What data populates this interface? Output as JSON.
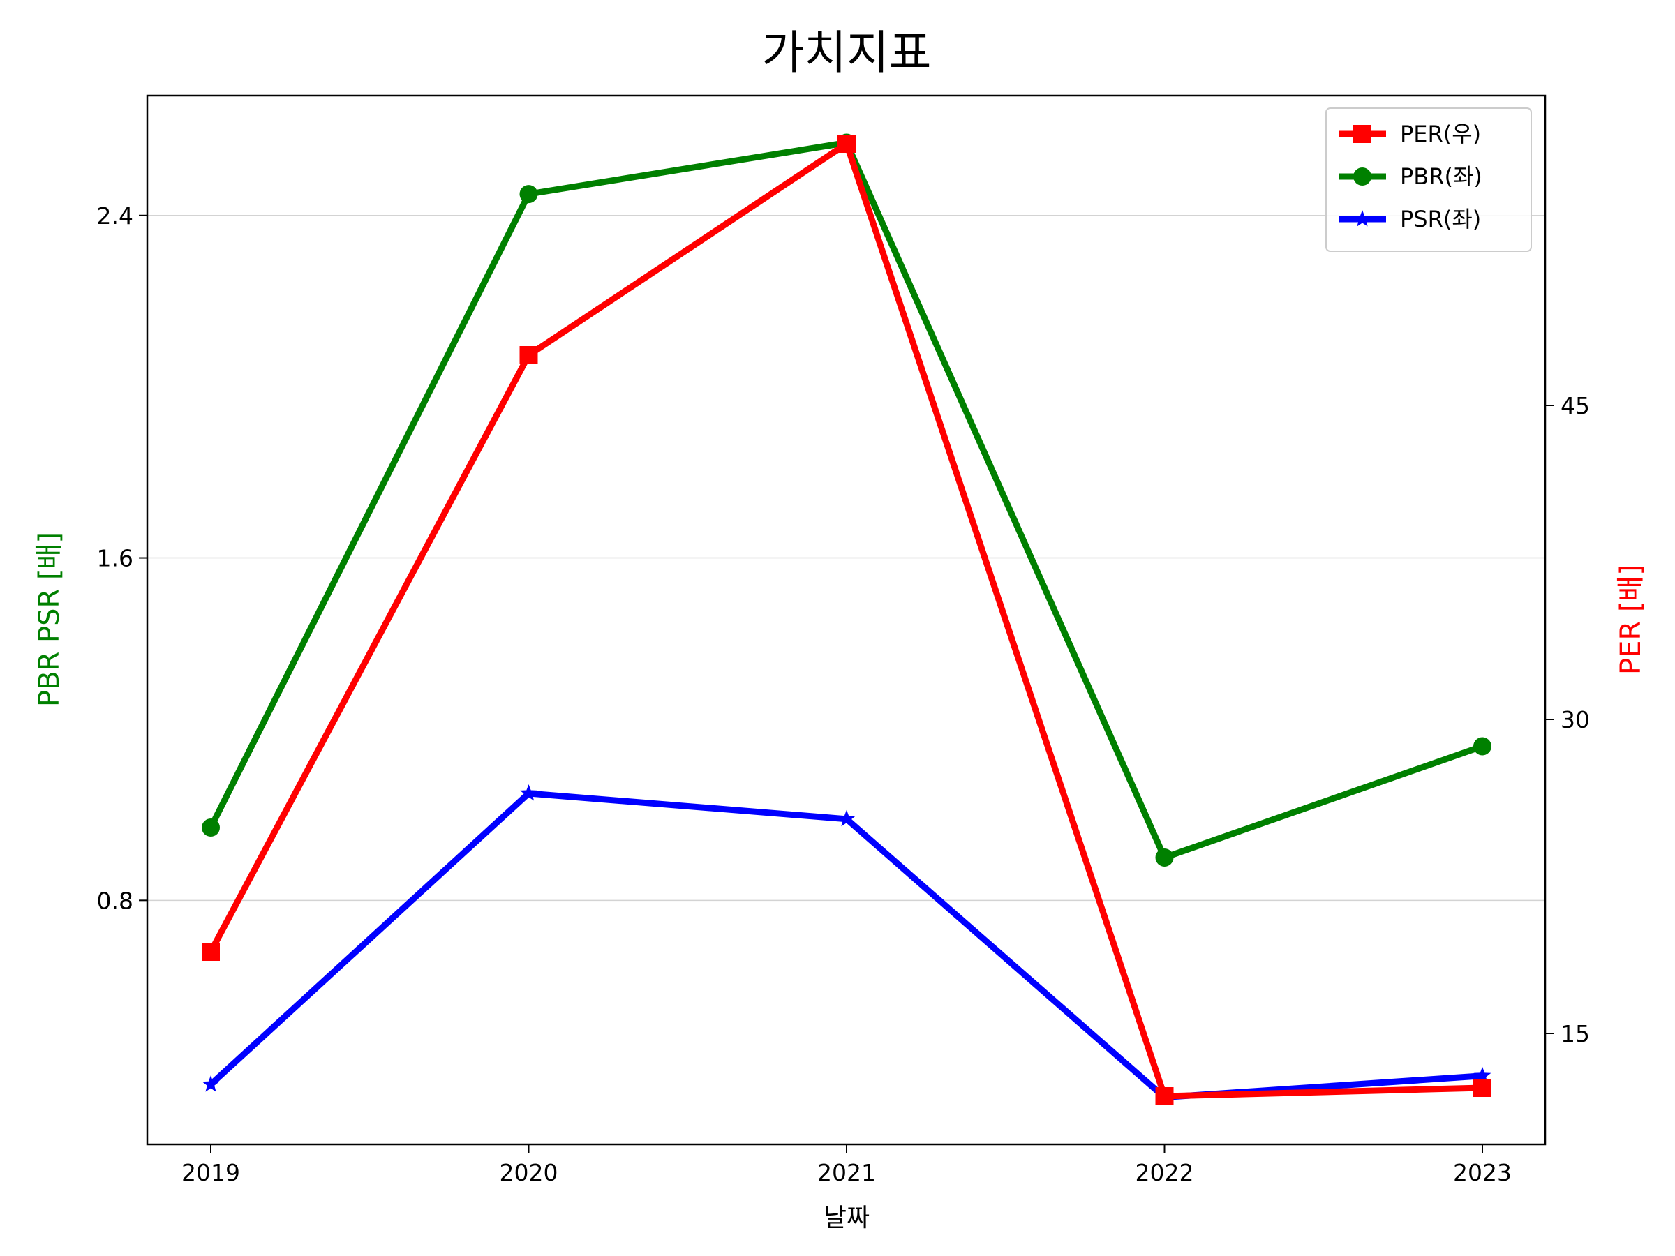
{
  "chart_data": {
    "type": "line",
    "title": "가치지표",
    "xlabel": "날짜",
    "ylabel_left": "PBR PSR [배]",
    "ylabel_right": "PER [배]",
    "x": [
      "2019",
      "2020",
      "2021",
      "2022",
      "2023"
    ],
    "left_axis": {
      "ylim": [
        0.23,
        2.68
      ],
      "ticks": [
        "0.8",
        "1.6",
        "2.4"
      ],
      "tick_values": [
        0.8,
        1.6,
        2.4
      ]
    },
    "right_axis": {
      "ylim": [
        9.7,
        59.8
      ],
      "ticks": [
        "15",
        "30",
        "45"
      ],
      "tick_values": [
        15,
        30,
        45
      ]
    },
    "grid": "horizontal",
    "legend_position": "top-right",
    "series": [
      {
        "name": "PER(우)",
        "axis": "right",
        "color": "#ff0000",
        "marker": "square",
        "values": [
          18.9,
          47.4,
          57.5,
          12.0,
          12.4
        ]
      },
      {
        "name": "PBR(좌)",
        "axis": "left",
        "color": "#008000",
        "marker": "circle",
        "values": [
          0.97,
          2.45,
          2.57,
          0.9,
          1.16
        ]
      },
      {
        "name": "PSR(좌)",
        "axis": "left",
        "color": "#0000ff",
        "marker": "star",
        "values": [
          0.37,
          1.05,
          0.99,
          0.34,
          0.39
        ]
      }
    ]
  }
}
